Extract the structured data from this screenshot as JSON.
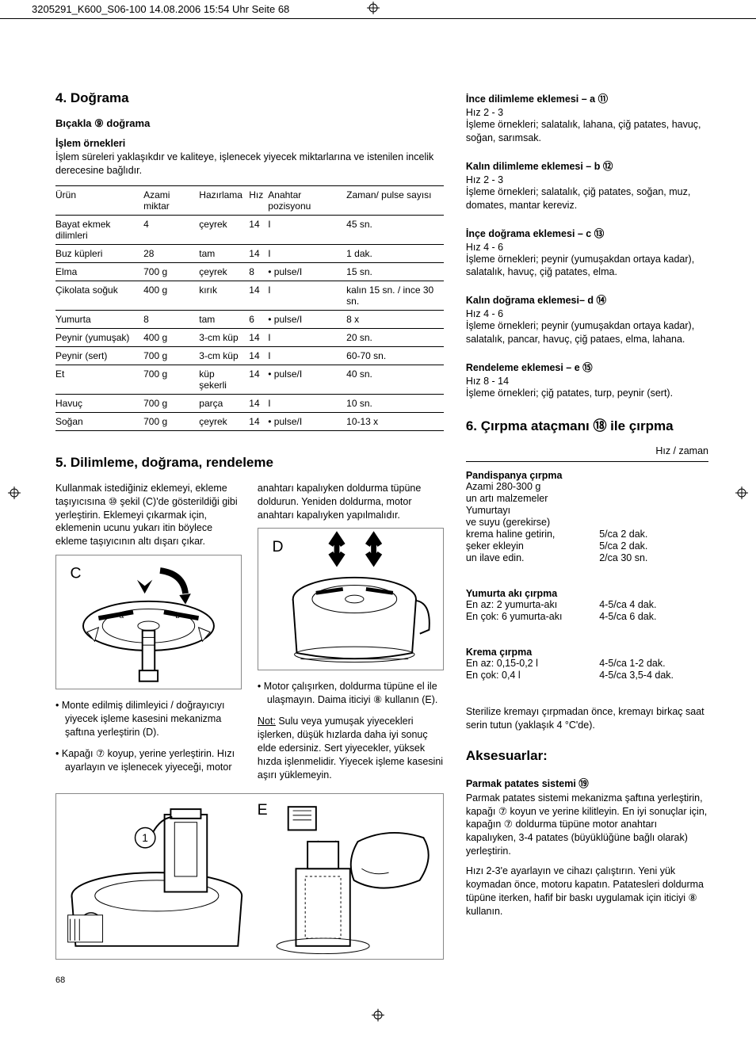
{
  "header": {
    "text": "3205291_K600_S06-100  14.08.2006  15:54 Uhr  Seite 68"
  },
  "section4": {
    "title": "4. Doğrama",
    "subtitle": "Bıçakla ⑨ doğrama",
    "examplesTitle": "İşlem örnekleri",
    "intro": "İşlem süreleri yaklaşıkdır ve kaliteye, işlenecek yiyecek miktarlarına ve istenilen incelik derecesine bağlıdır.",
    "columns": [
      "Ürün",
      "Azami miktar",
      "Hazırlama",
      "Hız",
      "Anahtar pozisyonu",
      "Zaman/ pulse sayısı"
    ],
    "rows": [
      [
        "Bayat ekmek dilimleri",
        "4",
        "çeyrek",
        "14",
        "I",
        "45 sn."
      ],
      [
        "Buz küpleri",
        "28",
        "tam",
        "14",
        "I",
        "1 dak."
      ],
      [
        "Elma",
        "700 g",
        "çeyrek",
        "8",
        "• pulse/I",
        "15 sn."
      ],
      [
        "Çikolata soğuk",
        "400 g",
        "kırık",
        "14",
        "I",
        "kalın 15 sn. / ince 30 sn."
      ],
      [
        "Yumurta",
        "8",
        "tam",
        "6",
        "• pulse/I",
        "8 x"
      ],
      [
        "Peynir (yumuşak)",
        "400 g",
        "3-cm küp",
        "14",
        "I",
        "20 sn."
      ],
      [
        "Peynir (sert)",
        "700 g",
        "3-cm küp",
        "14",
        "I",
        "60-70 sn."
      ],
      [
        "Et",
        "700 g",
        "küp şekerli",
        "14",
        "• pulse/I",
        "40 sn."
      ],
      [
        "Havuç",
        "700 g",
        "parça",
        "14",
        "I",
        "10 sn."
      ],
      [
        "Soğan",
        "700 g",
        "çeyrek",
        "14",
        "• pulse/I",
        "10-13 x"
      ]
    ]
  },
  "section5": {
    "title": "5. Dilimleme, doğrama, rendeleme",
    "leftCol": {
      "para1": "Kullanmak istediğiniz eklemeyi, ekleme taşıyıcısına ⑩ şekil (C)'de gösterildiği gibi yerleştirin. Eklemeyi çıkarmak için, eklemenin ucunu yukarı itin böylece ekleme taşıyıcının altı dışarı çıkar.",
      "bullets": [
        "Monte edilmiş dilimleyici / doğrayıcıyı yiyecek işleme kasesini mekanizma şaftına yerleştirin (D).",
        "Kapağı ⑦ koyup, yerine yerleştirin. Hızı ayarlayın ve işlenecek yiyeceği, motor"
      ]
    },
    "rightCol": {
      "para1": "anahtarı kapalıyken doldurma tüpüne doldurun. Yeniden doldurma, motor anahtarı kapalıyken yapılmalıdır.",
      "bullets": [
        "Motor çalışırken, doldurma tüpüne el ile ulaşmayın. Daima iticiyi ⑧ kullanın (E)."
      ],
      "noteLabel": "Not:",
      "note": " Sulu veya yumuşak yiyecekleri işlerken, düşük hızlarda daha iyi sonuç elde edersiniz. Sert yiyecekler, yüksek hızda işlenmelidir. Yiyecek işleme kasesini aşırı yüklemeyin."
    }
  },
  "rightAttachments": [
    {
      "title": "İnce dilimleme eklemesi – a ⑪",
      "speed": "Hız 2 - 3",
      "text": "İşleme örnekleri; salatalık, lahana, çiğ patates, havuç, soğan, sarımsak."
    },
    {
      "title": "Kalın dilimleme eklemesi – b ⑫",
      "speed": "Hız 2 - 3",
      "text": "İşleme örnekleri; salatalık, çiğ patates, soğan, muz, domates, mantar kereviz."
    },
    {
      "title": "İnçe doğrama eklemesi – c ⑬",
      "speed": "Hız 4 - 6",
      "text": "İşleme örnekleri; peynir (yumuşakdan ortaya kadar), salatalık, havuç, çiğ patates, elma."
    },
    {
      "title": "Kalın doğrama eklemesi– d ⑭",
      "speed": "Hız 4 - 6",
      "text": "İşleme örnekleri; peynir (yumuşakdan ortaya kadar), salatalık, pancar, havuç, çiğ pataes, elma, lahana."
    },
    {
      "title": "Rendeleme eklemesi – e ⑮",
      "speed": "Hız 8 - 14",
      "text": "İşleme örnekleri; çiğ patates, turp, peynir (sert)."
    }
  ],
  "section6": {
    "title": "6. Çırpma ataçmanı ⑱ ile çırpma",
    "headerRight": "Hız / zaman",
    "groups": [
      {
        "title": "Pandispanya çırpma",
        "lines": [
          [
            "Azami 280-300 g",
            ""
          ],
          [
            "un artı malzemeler",
            ""
          ],
          [
            "Yumurtayı",
            ""
          ],
          [
            "ve suyu (gerekirse)",
            ""
          ],
          [
            "krema haline getirin,",
            "5/ca 2 dak."
          ],
          [
            "şeker ekleyin",
            "5/ca 2 dak."
          ],
          [
            "un ilave edin.",
            "2/ca 30 sn."
          ]
        ]
      },
      {
        "title": "Yumurta akı çırpma",
        "lines": [
          [
            "En az: 2 yumurta-akı",
            "4-5/ca 4 dak."
          ],
          [
            "En çok: 6 yumurta-akı",
            "4-5/ca 6 dak."
          ]
        ]
      },
      {
        "title": "Krema çırpma",
        "lines": [
          [
            "En az: 0,15-0,2 l",
            "4-5/ca 1-2 dak."
          ],
          [
            "En çok: 0,4 l",
            "4-5/ca 3,5-4 dak."
          ]
        ]
      }
    ],
    "afterNote": "Sterilize kremayı çırpmadan önce, kremayı birkaç saat serin tutun (yaklaşık 4 °C'de)."
  },
  "accessories": {
    "title": "Aksesuarlar:",
    "subTitle": "Parmak patates sistemi ⑲",
    "para1": "Parmak patates sistemi mekanizma şaftına yerleştirin, kapağı ⑦ koyun ve yerine kilitleyin. En iyi sonuçlar için, kapağın ⑦ doldurma tüpüne motor anahtarı kapalıyken, 3-4 patates (büyüklüğüne bağlı olarak) yerleştirin.",
    "para2": "Hızı 2-3'e ayarlayın ve cihazı çalıştırın. Yeni yük koymadan önce, motoru kapatın. Patatesleri doldurma tüpüne iterken, hafif bir baskı uygulamak için iticiyi ⑧ kullanın."
  },
  "pageNum": "68"
}
